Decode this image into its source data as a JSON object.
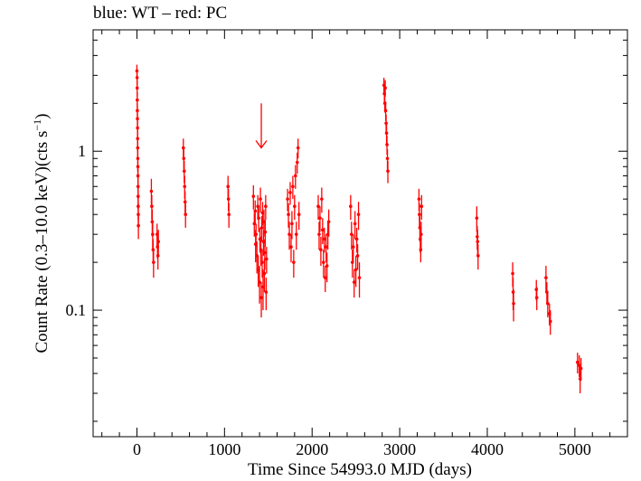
{
  "chart_data": {
    "type": "scatter",
    "title": "blue: WT – red: PC",
    "xlabel": "Time Since 54993.0 MJD (days)",
    "ylabel_main": "Count Rate (0.3–10.0 keV)(cts s",
    "ylabel_sup": "−1",
    "ylabel_end": ")",
    "x_scale": "linear",
    "y_scale": "log",
    "xlim": [
      -500,
      5600
    ],
    "ylim": [
      0.016,
      5.8
    ],
    "x_ticks": [
      0,
      1000,
      2000,
      3000,
      4000,
      5000
    ],
    "x_tick_labels": [
      "0",
      "1000",
      "2000",
      "3000",
      "4000",
      "5000"
    ],
    "y_ticks": [
      0.1,
      1
    ],
    "y_tick_labels": [
      "0.1",
      "1"
    ],
    "grid": false,
    "colors": {
      "pc": "#ff0000",
      "wt": "#0000ff",
      "axes": "#000000"
    },
    "annotation": {
      "type": "arrow-down",
      "x": 1420,
      "y_top": 2.0,
      "y_bottom": 1.05
    },
    "series": [
      {
        "name": "PC",
        "color": "#ff0000",
        "points": [
          [
            0,
            3.2,
            2.9,
            3.5
          ],
          [
            2,
            2.9,
            2.6,
            3.2
          ],
          [
            3,
            2.5,
            2.2,
            2.8
          ],
          [
            4,
            2.1,
            1.85,
            2.35
          ],
          [
            5,
            1.8,
            1.6,
            2.0
          ],
          [
            6,
            1.6,
            1.4,
            1.8
          ],
          [
            7,
            1.4,
            1.2,
            1.6
          ],
          [
            8,
            1.2,
            1.0,
            1.4
          ],
          [
            9,
            1.05,
            0.9,
            1.2
          ],
          [
            10,
            0.9,
            0.75,
            1.05
          ],
          [
            11,
            0.8,
            0.67,
            0.93
          ],
          [
            12,
            0.7,
            0.58,
            0.82
          ],
          [
            13,
            0.6,
            0.5,
            0.7
          ],
          [
            14,
            0.52,
            0.43,
            0.61
          ],
          [
            15,
            0.45,
            0.37,
            0.53
          ],
          [
            16,
            0.4,
            0.33,
            0.47
          ],
          [
            17,
            0.34,
            0.28,
            0.4
          ],
          [
            165,
            0.56,
            0.45,
            0.67
          ],
          [
            170,
            0.45,
            0.37,
            0.53
          ],
          [
            175,
            0.36,
            0.29,
            0.43
          ],
          [
            180,
            0.3,
            0.24,
            0.36
          ],
          [
            185,
            0.24,
            0.2,
            0.28
          ],
          [
            190,
            0.2,
            0.16,
            0.24
          ],
          [
            230,
            0.3,
            0.25,
            0.35
          ],
          [
            235,
            0.25,
            0.21,
            0.29
          ],
          [
            240,
            0.22,
            0.18,
            0.26
          ],
          [
            245,
            0.27,
            0.22,
            0.32
          ],
          [
            530,
            1.05,
            0.9,
            1.2
          ],
          [
            535,
            0.9,
            0.77,
            1.03
          ],
          [
            540,
            0.75,
            0.63,
            0.87
          ],
          [
            545,
            0.6,
            0.5,
            0.7
          ],
          [
            550,
            0.48,
            0.4,
            0.56
          ],
          [
            555,
            0.4,
            0.33,
            0.47
          ],
          [
            1040,
            0.6,
            0.5,
            0.7
          ],
          [
            1045,
            0.5,
            0.42,
            0.58
          ],
          [
            1050,
            0.4,
            0.33,
            0.47
          ],
          [
            1330,
            0.52,
            0.43,
            0.61
          ],
          [
            1340,
            0.35,
            0.29,
            0.41
          ],
          [
            1350,
            0.42,
            0.35,
            0.49
          ],
          [
            1355,
            0.26,
            0.2,
            0.32
          ],
          [
            1360,
            0.3,
            0.25,
            0.35
          ],
          [
            1370,
            0.22,
            0.17,
            0.27
          ],
          [
            1380,
            0.45,
            0.37,
            0.53
          ],
          [
            1385,
            0.18,
            0.14,
            0.22
          ],
          [
            1390,
            0.38,
            0.31,
            0.45
          ],
          [
            1400,
            0.15,
            0.11,
            0.19
          ],
          [
            1405,
            0.28,
            0.23,
            0.33
          ],
          [
            1410,
            0.5,
            0.41,
            0.59
          ],
          [
            1415,
            0.24,
            0.19,
            0.29
          ],
          [
            1420,
            0.12,
            0.09,
            0.15
          ],
          [
            1425,
            0.33,
            0.27,
            0.39
          ],
          [
            1430,
            0.2,
            0.16,
            0.24
          ],
          [
            1435,
            0.41,
            0.34,
            0.48
          ],
          [
            1440,
            0.14,
            0.1,
            0.18
          ],
          [
            1445,
            0.27,
            0.22,
            0.32
          ],
          [
            1450,
            0.36,
            0.29,
            0.43
          ],
          [
            1455,
            0.17,
            0.13,
            0.21
          ],
          [
            1460,
            0.23,
            0.18,
            0.28
          ],
          [
            1465,
            0.31,
            0.25,
            0.37
          ],
          [
            1470,
            0.45,
            0.37,
            0.53
          ],
          [
            1475,
            0.13,
            0.1,
            0.16
          ],
          [
            1480,
            0.21,
            0.17,
            0.25
          ],
          [
            1720,
            0.5,
            0.42,
            0.58
          ],
          [
            1730,
            0.4,
            0.33,
            0.47
          ],
          [
            1740,
            0.3,
            0.24,
            0.36
          ],
          [
            1750,
            0.55,
            0.46,
            0.64
          ],
          [
            1760,
            0.25,
            0.2,
            0.3
          ],
          [
            1770,
            0.35,
            0.28,
            0.42
          ],
          [
            1780,
            0.6,
            0.5,
            0.7
          ],
          [
            1790,
            0.2,
            0.16,
            0.24
          ],
          [
            1800,
            0.45,
            0.37,
            0.53
          ],
          [
            1810,
            0.7,
            0.58,
            0.82
          ],
          [
            1820,
            0.3,
            0.24,
            0.36
          ],
          [
            1830,
            0.85,
            0.72,
            0.98
          ],
          [
            1840,
            1.05,
            0.9,
            1.2
          ],
          [
            1850,
            0.4,
            0.32,
            0.48
          ],
          [
            2070,
            0.45,
            0.37,
            0.53
          ],
          [
            2080,
            0.3,
            0.24,
            0.36
          ],
          [
            2090,
            0.38,
            0.31,
            0.45
          ],
          [
            2100,
            0.24,
            0.19,
            0.29
          ],
          [
            2110,
            0.5,
            0.41,
            0.59
          ],
          [
            2120,
            0.32,
            0.26,
            0.38
          ],
          [
            2130,
            0.2,
            0.16,
            0.24
          ],
          [
            2140,
            0.28,
            0.23,
            0.33
          ],
          [
            2150,
            0.16,
            0.13,
            0.19
          ],
          [
            2160,
            0.25,
            0.2,
            0.3
          ],
          [
            2170,
            0.19,
            0.15,
            0.23
          ],
          [
            2180,
            0.3,
            0.24,
            0.36
          ],
          [
            2190,
            0.36,
            0.29,
            0.43
          ],
          [
            2440,
            0.45,
            0.37,
            0.53
          ],
          [
            2450,
            0.3,
            0.24,
            0.36
          ],
          [
            2460,
            0.2,
            0.16,
            0.24
          ],
          [
            2470,
            0.25,
            0.2,
            0.3
          ],
          [
            2480,
            0.15,
            0.12,
            0.18
          ],
          [
            2490,
            0.35,
            0.28,
            0.42
          ],
          [
            2500,
            0.18,
            0.14,
            0.22
          ],
          [
            2510,
            0.28,
            0.23,
            0.33
          ],
          [
            2520,
            0.22,
            0.18,
            0.26
          ],
          [
            2530,
            0.4,
            0.32,
            0.48
          ],
          [
            2540,
            0.16,
            0.12,
            0.2
          ],
          [
            2820,
            2.6,
            2.3,
            2.9
          ],
          [
            2825,
            2.3,
            2.0,
            2.6
          ],
          [
            2830,
            2.0,
            1.75,
            2.25
          ],
          [
            2835,
            2.5,
            2.2,
            2.8
          ],
          [
            2840,
            1.8,
            1.55,
            2.05
          ],
          [
            2845,
            1.5,
            1.3,
            1.7
          ],
          [
            2850,
            1.3,
            1.12,
            1.48
          ],
          [
            2855,
            1.1,
            0.95,
            1.25
          ],
          [
            2860,
            0.9,
            0.77,
            1.03
          ],
          [
            2865,
            0.75,
            0.63,
            0.87
          ],
          [
            3220,
            0.5,
            0.42,
            0.58
          ],
          [
            3225,
            0.4,
            0.33,
            0.47
          ],
          [
            3230,
            0.33,
            0.27,
            0.39
          ],
          [
            3235,
            0.28,
            0.23,
            0.33
          ],
          [
            3240,
            0.24,
            0.2,
            0.28
          ],
          [
            3245,
            0.3,
            0.24,
            0.36
          ],
          [
            3250,
            0.45,
            0.37,
            0.53
          ],
          [
            3880,
            0.38,
            0.31,
            0.45
          ],
          [
            3885,
            0.29,
            0.24,
            0.34
          ],
          [
            3890,
            0.27,
            0.22,
            0.32
          ],
          [
            3895,
            0.22,
            0.18,
            0.26
          ],
          [
            4290,
            0.17,
            0.14,
            0.2
          ],
          [
            4295,
            0.13,
            0.1,
            0.16
          ],
          [
            4300,
            0.11,
            0.085,
            0.135
          ],
          [
            4560,
            0.135,
            0.115,
            0.155
          ],
          [
            4565,
            0.12,
            0.1,
            0.14
          ],
          [
            4670,
            0.16,
            0.13,
            0.19
          ],
          [
            4680,
            0.13,
            0.11,
            0.15
          ],
          [
            4690,
            0.11,
            0.09,
            0.13
          ],
          [
            4710,
            0.095,
            0.08,
            0.11
          ],
          [
            4720,
            0.085,
            0.07,
            0.1
          ],
          [
            5030,
            0.047,
            0.04,
            0.054
          ],
          [
            5050,
            0.045,
            0.038,
            0.052
          ],
          [
            5060,
            0.037,
            0.03,
            0.044
          ],
          [
            5070,
            0.043,
            0.036,
            0.05
          ]
        ]
      }
    ]
  }
}
